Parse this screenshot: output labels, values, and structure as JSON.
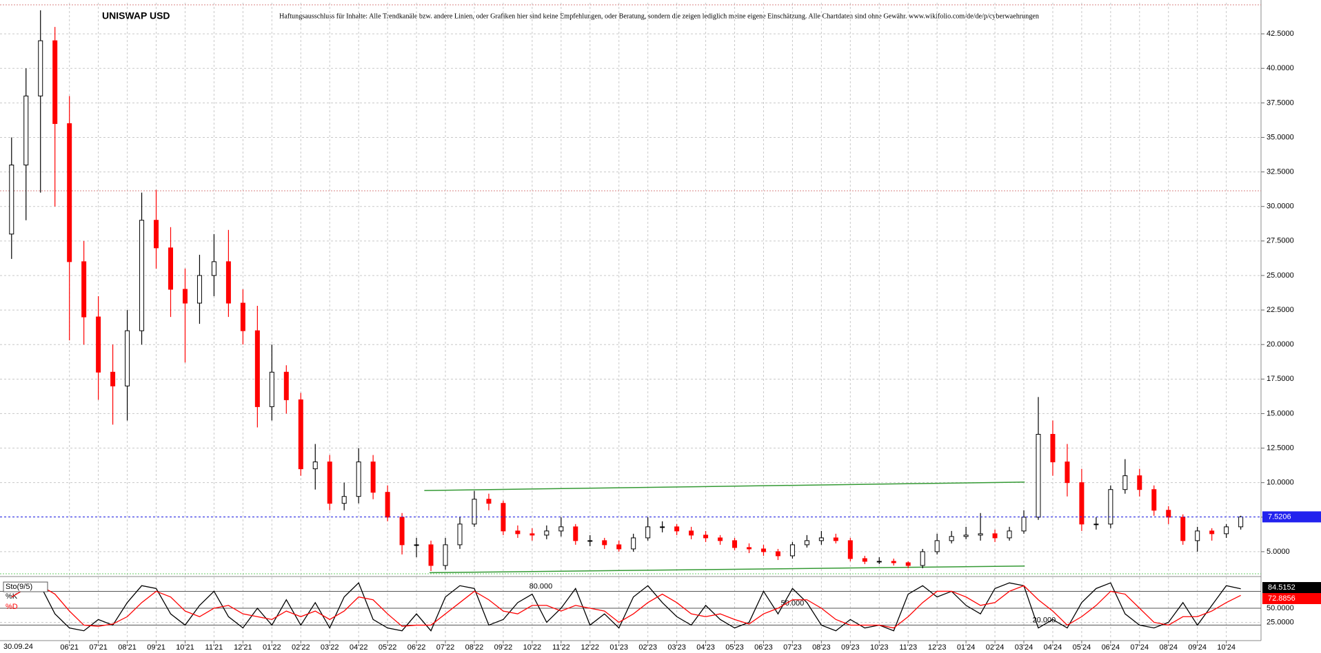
{
  "chart_data": [
    {
      "type": "candlestick",
      "title": "UNISWAP USD",
      "subtitle": "Haftungsausschluss für Inhalte: Alle Trendkanäle bzw. andere Linien, oder Grafiken hier sind keine Empfehlungen, oder Beratung, sondern die zeigen lediglich meine eigene Einschätzung. Alle Chartdaten sind ohne Gewähr.  www.wikifolio.com/de/de/p/cyberwaehrungen",
      "cursor_label": "30.09.24",
      "x": [
        -2,
        -1.5,
        -1,
        -0.5,
        0,
        0.5,
        1,
        1.5,
        2,
        2.5,
        3,
        3.5,
        4,
        4.5,
        5,
        5.5,
        6,
        6.5,
        7,
        7.5,
        8,
        8.5,
        9,
        9.5,
        10,
        10.5,
        11,
        11.5,
        12,
        12.5,
        13,
        13.5,
        14,
        14.5,
        15,
        15.5,
        16,
        16.5,
        17,
        17.5,
        18,
        18.5,
        19,
        19.5,
        20,
        20.5,
        21,
        21.5,
        22,
        22.5,
        23,
        23.5,
        24,
        24.5,
        25,
        25.5,
        26,
        26.5,
        27,
        27.5,
        28,
        28.5,
        29,
        29.5,
        30,
        30.5,
        31,
        31.5,
        32,
        32.5,
        33,
        33.5,
        34,
        34.5,
        35,
        35.5,
        36,
        36.5,
        37,
        37.5,
        38,
        38.5,
        39,
        39.5,
        40,
        40.5
      ],
      "open": [
        28,
        33,
        38,
        42,
        36,
        26,
        22,
        18,
        17,
        21,
        29,
        27,
        24,
        23,
        25,
        26,
        23,
        21,
        15.5,
        18,
        16,
        11,
        11.5,
        8.5,
        9,
        11.5,
        9.3,
        7.5,
        5.5,
        5.5,
        4,
        5.5,
        7,
        8.8,
        8.5,
        6.5,
        6.3,
        6.2,
        6.5,
        6.8,
        5.8,
        5.8,
        5.5,
        5.2,
        6,
        6.8,
        6.8,
        6.5,
        6.2,
        6,
        5.8,
        5.3,
        5.2,
        5,
        4.7,
        5.5,
        5.8,
        6,
        5.8,
        4.5,
        4.3,
        4.3,
        4.2,
        4,
        5,
        5.8,
        6.1,
        6.2,
        6.3,
        6,
        6.5,
        7.5,
        13.5,
        11.5,
        10,
        7,
        7,
        9.5,
        10.5,
        9.5,
        8,
        7.5,
        5.8,
        6.5,
        6.3,
        6.8
      ],
      "high": [
        35,
        40,
        44.2,
        43,
        38,
        27.5,
        23.5,
        20,
        22.5,
        31,
        31.2,
        28.5,
        25.5,
        26.5,
        28,
        28.3,
        24,
        22.8,
        20,
        18.5,
        16.5,
        12.8,
        12,
        10,
        12.5,
        12,
        9.8,
        7.8,
        6,
        5.8,
        6,
        7.5,
        9.4,
        9.2,
        8.7,
        6.9,
        6.7,
        6.9,
        7.5,
        7,
        6.2,
        6,
        5.8,
        6.3,
        7.5,
        7.2,
        7,
        6.8,
        6.5,
        6.2,
        6,
        5.6,
        5.5,
        5.2,
        5.7,
        6.2,
        6.5,
        6.3,
        6,
        4.7,
        4.6,
        4.5,
        4.3,
        5.2,
        6.3,
        6.5,
        6.8,
        7.8,
        6.6,
        6.8,
        8,
        16.2,
        14.5,
        12.8,
        11,
        7.5,
        9.8,
        11.7,
        11,
        9.8,
        8.3,
        7.7,
        6.8,
        6.7,
        7,
        7.6
      ],
      "low": [
        26.2,
        29,
        31,
        30,
        20.3,
        20,
        16,
        14.2,
        14.5,
        20,
        25.5,
        22,
        18.7,
        21.5,
        23.5,
        22,
        20,
        14,
        14.5,
        15,
        10.5,
        9.5,
        8,
        8,
        8.5,
        8.8,
        7.2,
        4.8,
        4.6,
        3.6,
        3.7,
        5.2,
        6.8,
        8,
        6.2,
        6,
        5.8,
        5.9,
        6.1,
        5.5,
        5.4,
        5.2,
        5,
        5,
        5.8,
        6.4,
        6.2,
        5.9,
        5.7,
        5.5,
        5.1,
        4.9,
        4.7,
        4.4,
        4.5,
        5.3,
        5.5,
        5.6,
        4.3,
        4.1,
        4.1,
        4,
        3.8,
        3.8,
        4.8,
        5.6,
        5.9,
        5.8,
        5.7,
        5.8,
        6.3,
        7.3,
        10.5,
        9,
        6.5,
        6.6,
        6.7,
        9.2,
        9,
        7.6,
        7,
        5.5,
        5,
        5.8,
        6,
        6.6
      ],
      "close": [
        33,
        38,
        42,
        36,
        26,
        22,
        18,
        17,
        21,
        29,
        27,
        24,
        23,
        25,
        26,
        23,
        21,
        15.5,
        18,
        16,
        11,
        11.5,
        8.5,
        9,
        11.5,
        9.3,
        7.5,
        5.5,
        5.5,
        4,
        5.5,
        7,
        8.8,
        8.5,
        6.5,
        6.3,
        6.2,
        6.5,
        6.8,
        5.8,
        5.8,
        5.5,
        5.2,
        6,
        6.8,
        6.8,
        6.5,
        6.2,
        6,
        5.8,
        5.3,
        5.2,
        5,
        4.7,
        5.5,
        5.8,
        6,
        5.8,
        4.5,
        4.3,
        4.3,
        4.2,
        4,
        5,
        5.8,
        6.1,
        6.2,
        6.3,
        6,
        6.5,
        7.5,
        13.5,
        11.5,
        10,
        7,
        7,
        9.5,
        10.5,
        9.5,
        8,
        7.5,
        5.8,
        6.5,
        6.3,
        6.8,
        7.5206
      ],
      "up_color": "#000000",
      "down_color": "#ff0000",
      "last_color": "#2222ee",
      "xlim": [
        -2.4,
        41.2
      ],
      "xticks": [
        {
          "value": 0,
          "label": "06'21"
        },
        {
          "value": 1,
          "label": "07'21"
        },
        {
          "value": 2,
          "label": "08'21"
        },
        {
          "value": 3,
          "label": "09'21"
        },
        {
          "value": 4,
          "label": "10'21"
        },
        {
          "value": 5,
          "label": "11'21"
        },
        {
          "value": 6,
          "label": "12'21"
        },
        {
          "value": 7,
          "label": "01'22"
        },
        {
          "value": 8,
          "label": "02'22"
        },
        {
          "value": 9,
          "label": "03'22"
        },
        {
          "value": 10,
          "label": "04'22"
        },
        {
          "value": 11,
          "label": "05'22"
        },
        {
          "value": 12,
          "label": "06'22"
        },
        {
          "value": 13,
          "label": "07'22"
        },
        {
          "value": 14,
          "label": "08'22"
        },
        {
          "value": 15,
          "label": "09'22"
        },
        {
          "value": 16,
          "label": "10'22"
        },
        {
          "value": 17,
          "label": "11'22"
        },
        {
          "value": 18,
          "label": "12'22"
        },
        {
          "value": 19,
          "label": "01'23"
        },
        {
          "value": 20,
          "label": "02'23"
        },
        {
          "value": 21,
          "label": "03'23"
        },
        {
          "value": 22,
          "label": "04'23"
        },
        {
          "value": 23,
          "label": "05'23"
        },
        {
          "value": 24,
          "label": "06'23"
        },
        {
          "value": 25,
          "label": "07'23"
        },
        {
          "value": 26,
          "label": "08'23"
        },
        {
          "value": 27,
          "label": "09'23"
        },
        {
          "value": 28,
          "label": "10'23"
        },
        {
          "value": 29,
          "label": "11'23"
        },
        {
          "value": 30,
          "label": "12'23"
        },
        {
          "value": 31,
          "label": "01'24"
        },
        {
          "value": 32,
          "label": "02'24"
        },
        {
          "value": 33,
          "label": "03'24"
        },
        {
          "value": 34,
          "label": "04'24"
        },
        {
          "value": 35,
          "label": "05'24"
        },
        {
          "value": 36,
          "label": "06'24"
        },
        {
          "value": 37,
          "label": "07'24"
        },
        {
          "value": 38,
          "label": "08'24"
        },
        {
          "value": 39,
          "label": "09'24"
        },
        {
          "value": 40,
          "label": "10'24"
        }
      ],
      "ylim": [
        3.25,
        44.75
      ],
      "yticks": [
        {
          "value": 5,
          "label": "5.0000"
        },
        {
          "value": 7.5,
          "label": "7.5000"
        },
        {
          "value": 10,
          "label": "10.0000"
        },
        {
          "value": 12.5,
          "label": "12.5000"
        },
        {
          "value": 15,
          "label": "15.0000"
        },
        {
          "value": 17.5,
          "label": "17.5000"
        },
        {
          "value": 20,
          "label": "20.0000"
        },
        {
          "value": 22.5,
          "label": "22.5000"
        },
        {
          "value": 25,
          "label": "25.0000"
        },
        {
          "value": 27.5,
          "label": "27.5000"
        },
        {
          "value": 30,
          "label": "30.0000"
        },
        {
          "value": 32.5,
          "label": "32.5000"
        },
        {
          "value": 35,
          "label": "35.0000"
        },
        {
          "value": 37.5,
          "label": "37.5000"
        },
        {
          "value": 40,
          "label": "40.0000"
        },
        {
          "value": 42.5,
          "label": "42.5000"
        }
      ],
      "grid": true,
      "hlines": [
        {
          "value": 31.13,
          "color": "#d88080"
        },
        {
          "value": 44.6,
          "color": "#d88080"
        },
        {
          "value": 3.4,
          "color": "#66cc66"
        }
      ],
      "trendlines": [
        {
          "x": [
            12.27,
            33.03
          ],
          "y": [
            9.43,
            10.04
          ],
          "color": "#339933"
        },
        {
          "x": [
            12.45,
            33.03
          ],
          "y": [
            3.48,
            3.96
          ],
          "color": "#339933"
        }
      ]
    },
    {
      "type": "line",
      "label": "Sto(9/5)",
      "series": [
        {
          "name": "%K",
          "color": "#000000",
          "values": [
            80,
            95,
            90,
            40,
            15,
            10,
            30,
            20,
            60,
            90,
            85,
            40,
            20,
            55,
            80,
            35,
            15,
            50,
            20,
            65,
            20,
            60,
            15,
            70,
            95,
            30,
            15,
            10,
            40,
            10,
            70,
            90,
            85,
            20,
            30,
            60,
            75,
            25,
            50,
            85,
            20,
            40,
            15,
            70,
            90,
            60,
            35,
            20,
            55,
            30,
            15,
            25,
            80,
            40,
            85,
            60,
            20,
            10,
            30,
            15,
            20,
            10,
            75,
            90,
            70,
            80,
            55,
            40,
            85,
            95,
            90,
            15,
            30,
            15,
            60,
            85,
            95,
            40,
            20,
            15,
            25,
            60,
            20,
            55,
            90,
            84.5152
          ]
        },
        {
          "name": "%D",
          "color": "#ff0000",
          "values": [
            70,
            85,
            90,
            75,
            45,
            20,
            18,
            22,
            35,
            60,
            80,
            70,
            45,
            35,
            50,
            55,
            40,
            35,
            30,
            45,
            35,
            45,
            30,
            45,
            70,
            65,
            40,
            18,
            20,
            20,
            40,
            60,
            80,
            65,
            45,
            40,
            55,
            55,
            45,
            55,
            50,
            45,
            25,
            40,
            60,
            75,
            60,
            40,
            35,
            40,
            30,
            22,
            40,
            50,
            65,
            65,
            50,
            30,
            20,
            20,
            20,
            15,
            35,
            60,
            80,
            80,
            70,
            55,
            60,
            80,
            90,
            65,
            45,
            20,
            35,
            55,
            80,
            75,
            50,
            25,
            20,
            35,
            35,
            45,
            60,
            72.8856
          ]
        }
      ],
      "ylim": [
        -5,
        105
      ],
      "yticks": [
        {
          "value": 25,
          "label": "25.0000"
        },
        {
          "value": 50,
          "label": "50.0000"
        }
      ],
      "levels": [
        {
          "value": 80,
          "label": "80.000",
          "at": 16.3
        },
        {
          "value": 50,
          "label": "50.000",
          "at": 25.0
        },
        {
          "value": 20,
          "label": "20.000",
          "at": 33.7
        }
      ]
    }
  ]
}
